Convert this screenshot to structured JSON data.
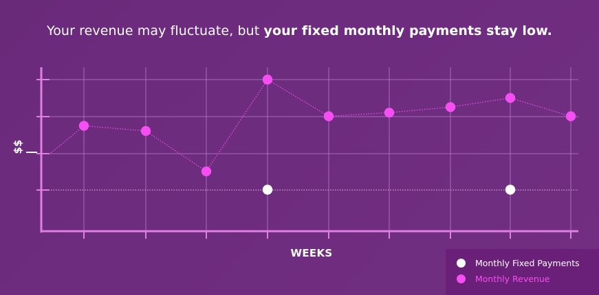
{
  "headline": {
    "regular": "Your revenue may fluctuate, but ",
    "bold": "your fixed monthly payments stay low."
  },
  "colors": {
    "background": "#6e2c7e",
    "revenue": "#f54ef2",
    "fixed": "#ffffff",
    "axis": "#e07fe2",
    "grid": "#c07ed0",
    "legend_bg": "#6a1f78"
  },
  "legend": {
    "items": [
      {
        "label": "Monthly Fixed Payments",
        "color": "#ffffff"
      },
      {
        "label": "Monthly Revenue",
        "color": "#f54ef2"
      }
    ]
  },
  "chart_data": {
    "type": "line",
    "title": "Your revenue may fluctuate, but your fixed monthly payments stay low.",
    "xlabel": "WEEKS",
    "ylabel": "$$",
    "x": [
      0,
      1,
      2,
      3,
      4,
      5,
      6,
      7,
      8,
      9
    ],
    "ylim": [
      0,
      4.4
    ],
    "grid": true,
    "legend_position": "bottom-right",
    "series": [
      {
        "name": "Monthly Revenue",
        "color": "#f54ef2",
        "values": [
          2.0,
          2.74,
          2.6,
          1.5,
          4.0,
          3.0,
          3.1,
          3.25,
          3.5,
          3.0
        ],
        "markers": [
          false,
          true,
          true,
          true,
          true,
          true,
          true,
          true,
          true,
          true
        ]
      },
      {
        "name": "Monthly Fixed Payments",
        "color": "#ffffff",
        "values": [
          1.0,
          1.0,
          1.0,
          1.0,
          1.0,
          1.0,
          1.0,
          1.0,
          1.0,
          1.0
        ],
        "markers": [
          false,
          false,
          false,
          false,
          true,
          false,
          false,
          false,
          true,
          false
        ]
      }
    ]
  }
}
